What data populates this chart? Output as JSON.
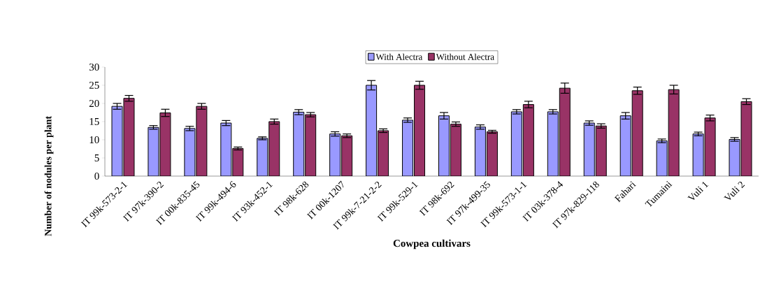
{
  "chart_data": {
    "type": "bar",
    "xlabel": "Cowpea cultivars",
    "ylabel": "Number of nodules per plant",
    "categories": [
      "IT 99k-573-2-1",
      "IT 97k-390-2",
      "IT 00k-835-45",
      "IT 99k-494-6",
      "IT 93k-452-1",
      "IT 98k-628",
      "IT 00k-1207",
      "IT 99k-7-21-2-2",
      "IT 99k-529-1",
      "IT 98k-692",
      "IT 97k-499-35",
      "IT 99k-573-1-1",
      "IT 03k-378-4",
      "IT 97k-829-118",
      "Fahari",
      "Tumaini",
      "Vuli 1",
      "Vuli 2"
    ],
    "series": [
      {
        "name": "With Alectra",
        "color": "#9999ff",
        "values": [
          19.2,
          13.4,
          13.1,
          14.6,
          10.4,
          17.6,
          11.6,
          25.0,
          15.4,
          16.6,
          13.5,
          17.7,
          17.7,
          14.6,
          16.6,
          9.7,
          11.6,
          10.1
        ],
        "errors": [
          0.8,
          0.5,
          0.6,
          0.7,
          0.4,
          0.7,
          0.6,
          1.3,
          0.6,
          0.9,
          0.6,
          0.6,
          0.6,
          0.6,
          0.9,
          0.5,
          0.5,
          0.5
        ]
      },
      {
        "name": "Without Alectra",
        "color": "#993366",
        "values": [
          21.4,
          17.4,
          19.2,
          7.6,
          15.0,
          16.9,
          11.1,
          12.5,
          25.0,
          14.3,
          12.2,
          19.7,
          24.2,
          13.8,
          23.5,
          23.8,
          16.0,
          20.5
        ],
        "errors": [
          0.8,
          1.0,
          0.8,
          0.4,
          0.7,
          0.6,
          0.5,
          0.5,
          1.1,
          0.6,
          0.4,
          0.9,
          1.4,
          0.6,
          1.0,
          1.2,
          0.8,
          0.8
        ]
      }
    ],
    "ylim": [
      0,
      30
    ],
    "yticks": [
      0,
      5,
      10,
      15,
      20,
      25,
      30
    ],
    "grid": false,
    "legend": "top"
  }
}
